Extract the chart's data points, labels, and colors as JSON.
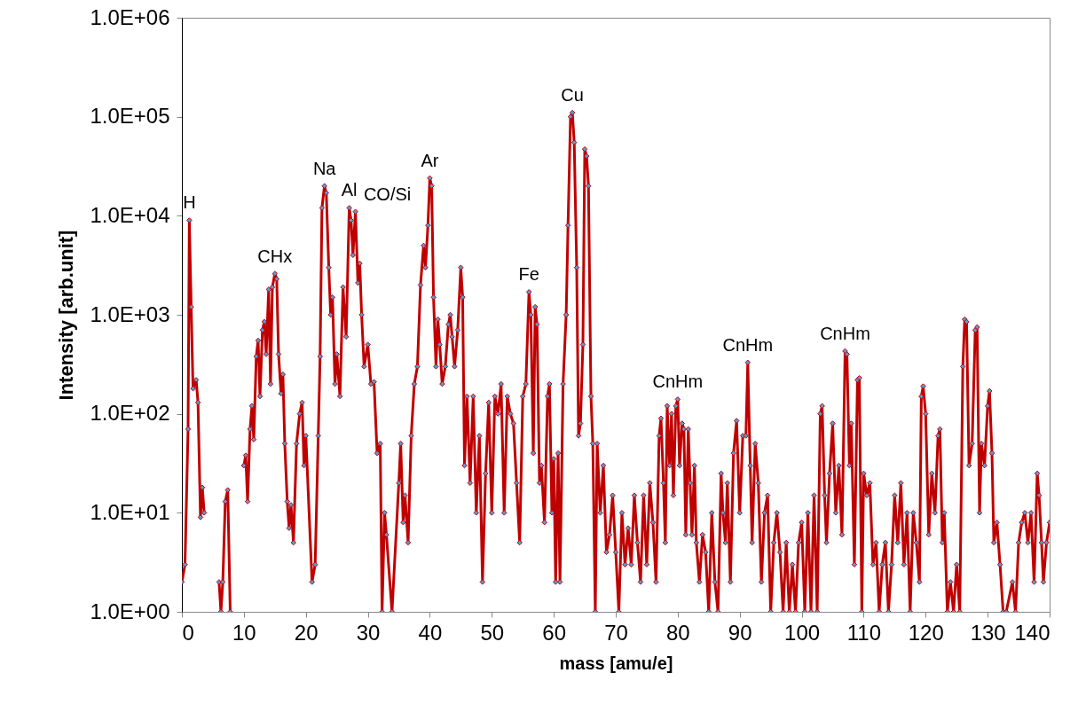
{
  "chart_data": {
    "type": "line",
    "xlabel": "mass [amu/e]",
    "ylabel": "Intensity [arb.unit]",
    "log": "y",
    "marker": "diamond",
    "line_style": "solid",
    "xlim": [
      0,
      140
    ],
    "xticks": [
      0,
      10,
      20,
      30,
      40,
      50,
      60,
      70,
      80,
      90,
      100,
      110,
      120,
      130,
      140
    ],
    "ylim": [
      1,
      1000000
    ],
    "yticks": [
      {
        "value": 1,
        "label": "1.0E+00"
      },
      {
        "value": 10,
        "label": "1.0E+01"
      },
      {
        "value": 100,
        "label": "1.0E+02"
      },
      {
        "value": 1000,
        "label": "1.0E+03"
      },
      {
        "value": 10000,
        "label": "1.0E+04"
      },
      {
        "value": 100000,
        "label": "1.0E+05"
      },
      {
        "value": 1000000,
        "label": "1.0E+06"
      }
    ],
    "annotations": [
      {
        "text": "H",
        "x": 1.2,
        "y": 9000
      },
      {
        "text": "CHx",
        "x": 15,
        "y": 2600
      },
      {
        "text": "Na",
        "x": 23,
        "y": 20000
      },
      {
        "text": "Al",
        "x": 27,
        "y": 12000
      },
      {
        "text": "CO/Si",
        "x": 28,
        "y": 11000
      },
      {
        "text": "Ar",
        "x": 40,
        "y": 24000
      },
      {
        "text": "Fe",
        "x": 56,
        "y": 1700
      },
      {
        "text": "Cu",
        "x": 63,
        "y": 110000
      },
      {
        "text": "CnHm",
        "x": 80,
        "y": 140
      },
      {
        "text": "CnHm",
        "x": 91.3,
        "y": 330
      },
      {
        "text": "CnHm",
        "x": 107,
        "y": 430
      }
    ],
    "x": [
      0,
      0.5,
      1,
      1.2,
      1.5,
      1.8,
      2.3,
      2.6,
      3,
      3.3,
      3.6,
      4.5,
      6,
      6.3,
      6.6,
      7,
      7.4,
      7.8,
      9,
      10,
      10.3,
      10.6,
      11,
      11.3,
      11.6,
      12,
      12.3,
      12.6,
      13,
      13.3,
      13.6,
      14,
      14.3,
      14.6,
      15,
      15.3,
      15.6,
      16,
      16.3,
      16.6,
      17,
      17.3,
      17.6,
      18,
      18.5,
      19,
      19.4,
      19.7,
      20,
      21,
      21.5,
      22,
      22.3,
      22.6,
      23,
      23.3,
      23.7,
      24,
      24.3,
      24.7,
      25,
      25.5,
      26,
      26.5,
      27,
      27.3,
      27.6,
      28,
      28.4,
      28.7,
      29,
      29.4,
      30,
      30.5,
      31,
      31.5,
      32,
      32.3,
      32.7,
      33,
      33.9,
      35,
      35.3,
      35.7,
      36,
      36.5,
      37,
      37.5,
      38,
      38.5,
      39,
      39.3,
      39.7,
      40,
      40.3,
      40.6,
      41,
      41.3,
      41.6,
      42,
      42.5,
      43,
      43.3,
      43.6,
      44,
      44.5,
      45,
      45.3,
      45.6,
      46,
      46.5,
      47,
      47.5,
      48,
      48.5,
      49,
      49.5,
      50,
      50.5,
      51,
      51.5,
      52,
      52.5,
      53,
      53.5,
      54,
      54.5,
      55,
      55.5,
      56,
      56.3,
      56.7,
      57,
      57.3,
      57.7,
      58,
      58.5,
      59,
      59.3,
      59.7,
      60,
      60.3,
      60.7,
      61,
      61.5,
      62,
      62.3,
      62.7,
      63,
      63.3,
      63.7,
      64,
      64.3,
      64.7,
      65,
      65.3,
      65.6,
      66,
      66.3,
      66.7,
      67,
      67.5,
      68,
      68.5,
      69,
      69.5,
      70,
      70.5,
      71,
      71.5,
      72,
      72.5,
      73,
      73.5,
      74,
      74.5,
      75,
      75.5,
      76,
      76.5,
      77,
      77.3,
      77.7,
      78,
      78.3,
      78.7,
      79,
      79.3,
      79.7,
      80,
      80.3,
      80.7,
      81,
      81.3,
      81.7,
      82,
      82.3,
      82.7,
      83,
      83.5,
      84,
      84.5,
      85,
      85.5,
      86,
      86.5,
      87,
      87.3,
      87.7,
      88,
      88.5,
      89,
      89.5,
      90,
      90.5,
      91,
      91.3,
      91.7,
      92,
      92.5,
      93,
      93.5,
      94,
      94.5,
      95,
      95.5,
      96,
      96.5,
      97,
      97.5,
      98,
      98.5,
      99,
      99.5,
      100,
      100.5,
      101,
      101.5,
      102,
      102.5,
      103,
      103.3,
      103.7,
      104,
      104.5,
      105,
      105.5,
      106,
      106.5,
      107,
      107.3,
      107.7,
      108,
      108.5,
      109,
      109.3,
      109.7,
      110,
      110.5,
      111,
      111.5,
      112,
      112.5,
      113,
      113.5,
      114,
      114.5,
      115,
      115.5,
      116,
      116.5,
      117,
      117.5,
      118,
      118.5,
      119,
      119.3,
      119.6,
      120,
      120.5,
      121,
      121.5,
      122,
      122.3,
      122.7,
      123,
      123.5,
      124,
      124.5,
      125,
      125.5,
      126,
      126.3,
      126.6,
      127,
      127.5,
      128,
      128.3,
      128.7,
      129,
      129.5,
      130,
      130.3,
      130.7,
      131,
      131.5,
      132,
      132.5,
      133,
      134,
      134.5,
      135,
      135.5,
      136,
      136.5,
      137,
      137.5,
      138,
      138.3,
      138.7,
      139,
      139.5,
      140
    ],
    "series": [
      {
        "color": "#c00000",
        "values": [
          2,
          3,
          70,
          9000,
          1200,
          180,
          220,
          130,
          9,
          18,
          10,
          null,
          2,
          1,
          2,
          13,
          17,
          1,
          null,
          30,
          38,
          13,
          70,
          120,
          55,
          380,
          550,
          150,
          700,
          850,
          400,
          1800,
          200,
          1900,
          2600,
          2300,
          400,
          160,
          250,
          50,
          13,
          7,
          12,
          5,
          50,
          100,
          130,
          30,
          60,
          2,
          3,
          60,
          380,
          12000,
          20000,
          17000,
          3000,
          1000,
          1500,
          200,
          400,
          150,
          1900,
          600,
          12000,
          9000,
          4000,
          11000,
          2100,
          3300,
          1000,
          300,
          500,
          200,
          210,
          40,
          50,
          1,
          10,
          6,
          1,
          20,
          50,
          8,
          15,
          5,
          60,
          200,
          300,
          2000,
          5000,
          3000,
          8000,
          24000,
          20000,
          1500,
          300,
          900,
          500,
          200,
          300,
          800,
          1000,
          600,
          300,
          700,
          3000,
          1500,
          30,
          150,
          20,
          150,
          10,
          60,
          2,
          25,
          130,
          10,
          150,
          100,
          200,
          10,
          150,
          100,
          80,
          20,
          5,
          150,
          200,
          1700,
          1000,
          40,
          1200,
          800,
          20,
          30,
          8,
          150,
          200,
          10,
          35,
          2,
          40,
          2,
          200,
          1000,
          8000,
          100000,
          110000,
          55000,
          3000,
          60,
          80,
          500,
          47000,
          40000,
          20000,
          150,
          50,
          1,
          50,
          10,
          30,
          4,
          6,
          15,
          4,
          1,
          10,
          3,
          7,
          3,
          15,
          5,
          2,
          15,
          3,
          20,
          8,
          2,
          60,
          90,
          20,
          5,
          120,
          30,
          100,
          15,
          120,
          140,
          30,
          80,
          70,
          6,
          70,
          20,
          6,
          30,
          5,
          2,
          6,
          4,
          1,
          10,
          2,
          1,
          25,
          10,
          5,
          20,
          2,
          40,
          85,
          10,
          60,
          60,
          330,
          30,
          5,
          50,
          20,
          2,
          10,
          15,
          1,
          5,
          10,
          4,
          1,
          5,
          1,
          3,
          1,
          5,
          8,
          1,
          10,
          1,
          15,
          1,
          100,
          120,
          15,
          5,
          25,
          80,
          10,
          30,
          6,
          430,
          400,
          30,
          80,
          3,
          220,
          230,
          1,
          25,
          15,
          20,
          3,
          5,
          1,
          3,
          5,
          1,
          3,
          15,
          5,
          20,
          3,
          10,
          1,
          10,
          5,
          2,
          150,
          190,
          100,
          6,
          25,
          10,
          60,
          70,
          5,
          10,
          1,
          2,
          1,
          3,
          1,
          300,
          900,
          850,
          30,
          50,
          700,
          750,
          10,
          50,
          30,
          120,
          170,
          40,
          5,
          8,
          3,
          1,
          1,
          2,
          1,
          5,
          8,
          10,
          5,
          10,
          2,
          25,
          15,
          5,
          2,
          5,
          8
        ]
      }
    ]
  }
}
